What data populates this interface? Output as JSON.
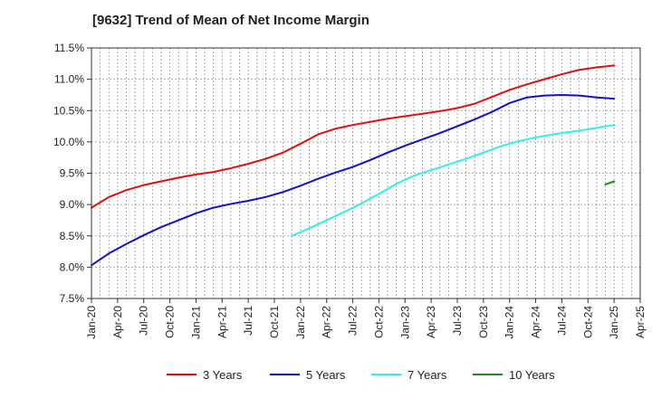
{
  "chart_data": {
    "type": "line",
    "title": "[9632]  Trend of Mean of Net Income Margin",
    "xlabel": "",
    "ylabel": "",
    "x_ticks": [
      "Jan-20",
      "Apr-20",
      "Jul-20",
      "Oct-20",
      "Jan-21",
      "Apr-21",
      "Jul-21",
      "Oct-21",
      "Jan-22",
      "Apr-22",
      "Jul-22",
      "Oct-22",
      "Jan-23",
      "Apr-23",
      "Jul-23",
      "Oct-23",
      "Jan-24",
      "Apr-24",
      "Jul-24",
      "Oct-24",
      "Jan-25",
      "Apr-25"
    ],
    "y_ticks": [
      "7.5%",
      "8.0%",
      "8.5%",
      "9.0%",
      "9.5%",
      "10.0%",
      "10.5%",
      "11.0%",
      "11.5%"
    ],
    "ylim": [
      7.5,
      11.5
    ],
    "grid": true,
    "legend_position": "bottom",
    "series": [
      {
        "name": "3 Years",
        "color": "#dd1111",
        "points": [
          [
            "Jan-20",
            8.95
          ],
          [
            "Mar-20",
            9.12
          ],
          [
            "May-20",
            9.23
          ],
          [
            "Jul-20",
            9.31
          ],
          [
            "Sep-20",
            9.37
          ],
          [
            "Nov-20",
            9.43
          ],
          [
            "Jan-21",
            9.48
          ],
          [
            "Mar-21",
            9.52
          ],
          [
            "May-21",
            9.58
          ],
          [
            "Jul-21",
            9.65
          ],
          [
            "Sep-21",
            9.73
          ],
          [
            "Nov-21",
            9.83
          ],
          [
            "Jan-22",
            9.97
          ],
          [
            "Mar-22",
            10.12
          ],
          [
            "May-22",
            10.21
          ],
          [
            "Jul-22",
            10.27
          ],
          [
            "Sep-22",
            10.32
          ],
          [
            "Nov-22",
            10.37
          ],
          [
            "Jan-23",
            10.41
          ],
          [
            "Mar-23",
            10.45
          ],
          [
            "May-23",
            10.49
          ],
          [
            "Jul-23",
            10.54
          ],
          [
            "Sep-23",
            10.61
          ],
          [
            "Nov-23",
            10.72
          ],
          [
            "Jan-24",
            10.83
          ],
          [
            "Mar-24",
            10.92
          ],
          [
            "May-24",
            11.0
          ],
          [
            "Jul-24",
            11.08
          ],
          [
            "Sep-24",
            11.15
          ],
          [
            "Nov-24",
            11.19
          ],
          [
            "Jan-25",
            11.22
          ]
        ]
      },
      {
        "name": "5 Years",
        "color": "#1111cc",
        "points": [
          [
            "Jan-20",
            8.03
          ],
          [
            "Mar-20",
            8.22
          ],
          [
            "May-20",
            8.37
          ],
          [
            "Jul-20",
            8.51
          ],
          [
            "Sep-20",
            8.64
          ],
          [
            "Nov-20",
            8.75
          ],
          [
            "Jan-21",
            8.86
          ],
          [
            "Mar-21",
            8.95
          ],
          [
            "May-21",
            9.01
          ],
          [
            "Jul-21",
            9.06
          ],
          [
            "Sep-21",
            9.12
          ],
          [
            "Nov-21",
            9.2
          ],
          [
            "Jan-22",
            9.3
          ],
          [
            "Mar-22",
            9.41
          ],
          [
            "May-22",
            9.51
          ],
          [
            "Jul-22",
            9.6
          ],
          [
            "Sep-22",
            9.71
          ],
          [
            "Nov-22",
            9.83
          ],
          [
            "Jan-23",
            9.94
          ],
          [
            "Mar-23",
            10.04
          ],
          [
            "May-23",
            10.14
          ],
          [
            "Jul-23",
            10.25
          ],
          [
            "Sep-23",
            10.36
          ],
          [
            "Nov-23",
            10.48
          ],
          [
            "Jan-24",
            10.62
          ],
          [
            "Mar-24",
            10.71
          ],
          [
            "May-24",
            10.74
          ],
          [
            "Jul-24",
            10.75
          ],
          [
            "Sep-24",
            10.74
          ],
          [
            "Nov-24",
            10.71
          ],
          [
            "Jan-25",
            10.69
          ]
        ]
      },
      {
        "name": "7 Years",
        "color": "#33eeee",
        "points": [
          [
            "Dec-21",
            8.5
          ],
          [
            "Feb-22",
            8.62
          ],
          [
            "Apr-22",
            8.75
          ],
          [
            "Jun-22",
            8.88
          ],
          [
            "Aug-22",
            9.02
          ],
          [
            "Oct-22",
            9.17
          ],
          [
            "Dec-22",
            9.33
          ],
          [
            "Feb-23",
            9.46
          ],
          [
            "Apr-23",
            9.55
          ],
          [
            "Jun-23",
            9.64
          ],
          [
            "Aug-23",
            9.73
          ],
          [
            "Oct-23",
            9.83
          ],
          [
            "Dec-23",
            9.93
          ],
          [
            "Feb-24",
            10.01
          ],
          [
            "Apr-24",
            10.07
          ],
          [
            "Jun-24",
            10.12
          ],
          [
            "Aug-24",
            10.16
          ],
          [
            "Oct-24",
            10.2
          ],
          [
            "Dec-24",
            10.25
          ],
          [
            "Jan-25",
            10.27
          ]
        ]
      },
      {
        "name": "10 Years",
        "color": "#228822",
        "points": [
          [
            "Dec-24",
            9.32
          ],
          [
            "Jan-25",
            9.37
          ]
        ]
      }
    ]
  }
}
